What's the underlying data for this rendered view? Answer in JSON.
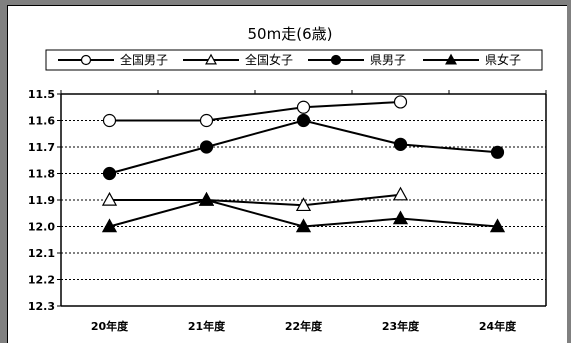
{
  "chart_data": {
    "type": "line",
    "title": "50m走(6歳)",
    "categories": [
      "20年度",
      "21年度",
      "22年度",
      "23年度",
      "24年度"
    ],
    "yticks": [
      "11.5",
      "11.6",
      "11.7",
      "11.8",
      "11.9",
      "12.0",
      "12.1",
      "12.2",
      "12.3"
    ],
    "ylim": [
      11.5,
      12.3
    ],
    "y_inverted": true,
    "grid": true,
    "legend_position": "top",
    "series": [
      {
        "name": "全国男子",
        "marker": "circle-open",
        "values": [
          11.6,
          11.6,
          11.55,
          11.53,
          null
        ]
      },
      {
        "name": "全国女子",
        "marker": "triangle-open",
        "values": [
          11.9,
          11.9,
          11.92,
          11.88,
          null
        ]
      },
      {
        "name": "県男子",
        "marker": "circle-filled",
        "values": [
          11.8,
          11.7,
          11.6,
          11.69,
          11.72
        ]
      },
      {
        "name": "県女子",
        "marker": "triangle-filled",
        "values": [
          12.0,
          11.9,
          12.0,
          11.97,
          12.0
        ]
      }
    ]
  }
}
